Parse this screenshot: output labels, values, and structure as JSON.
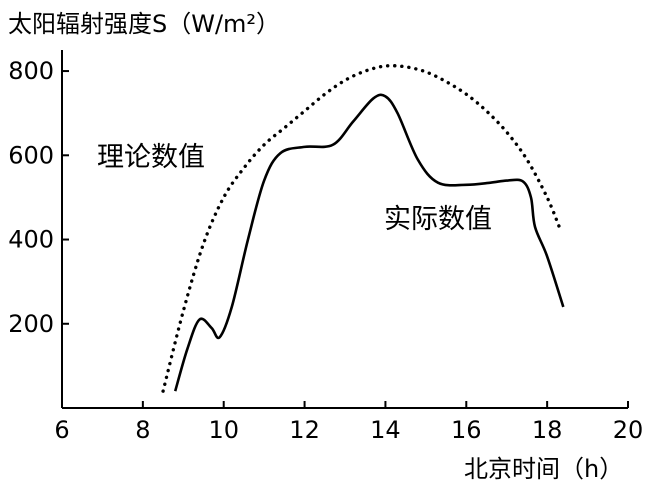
{
  "chart_data": {
    "type": "line",
    "ylabel": "太阳辐射强度S（W/m²）",
    "xlabel": "北京时间（h）",
    "xlim": [
      6,
      20
    ],
    "ylim": [
      0,
      850
    ],
    "x_ticks": [
      6,
      8,
      10,
      12,
      14,
      16,
      18,
      20
    ],
    "y_ticks": [
      200,
      400,
      600,
      800
    ],
    "grid": false,
    "series": [
      {
        "name": "理论数值",
        "style": "dotted",
        "points": [
          [
            8.5,
            40
          ],
          [
            9,
            230
          ],
          [
            9.5,
            390
          ],
          [
            10,
            500
          ],
          [
            10.5,
            570
          ],
          [
            11,
            625
          ],
          [
            11.5,
            665
          ],
          [
            12,
            705
          ],
          [
            12.5,
            745
          ],
          [
            13,
            778
          ],
          [
            13.5,
            800
          ],
          [
            14,
            812
          ],
          [
            14.5,
            810
          ],
          [
            15,
            798
          ],
          [
            15.5,
            775
          ],
          [
            16,
            745
          ],
          [
            16.5,
            705
          ],
          [
            17,
            655
          ],
          [
            17.5,
            590
          ],
          [
            18,
            500
          ],
          [
            18.3,
            430
          ]
        ]
      },
      {
        "name": "实际数值",
        "style": "solid",
        "points": [
          [
            8.8,
            40
          ],
          [
            9.1,
            140
          ],
          [
            9.4,
            210
          ],
          [
            9.7,
            190
          ],
          [
            9.9,
            168
          ],
          [
            10.2,
            240
          ],
          [
            10.6,
            400
          ],
          [
            11,
            540
          ],
          [
            11.4,
            605
          ],
          [
            12,
            620
          ],
          [
            12.7,
            625
          ],
          [
            13.2,
            680
          ],
          [
            13.7,
            735
          ],
          [
            14,
            740
          ],
          [
            14.3,
            700
          ],
          [
            14.8,
            590
          ],
          [
            15.3,
            535
          ],
          [
            16,
            530
          ],
          [
            16.6,
            535
          ],
          [
            17,
            540
          ],
          [
            17.4,
            538
          ],
          [
            17.6,
            500
          ],
          [
            17.7,
            430
          ],
          [
            18,
            360
          ],
          [
            18.4,
            240
          ]
        ]
      }
    ]
  }
}
